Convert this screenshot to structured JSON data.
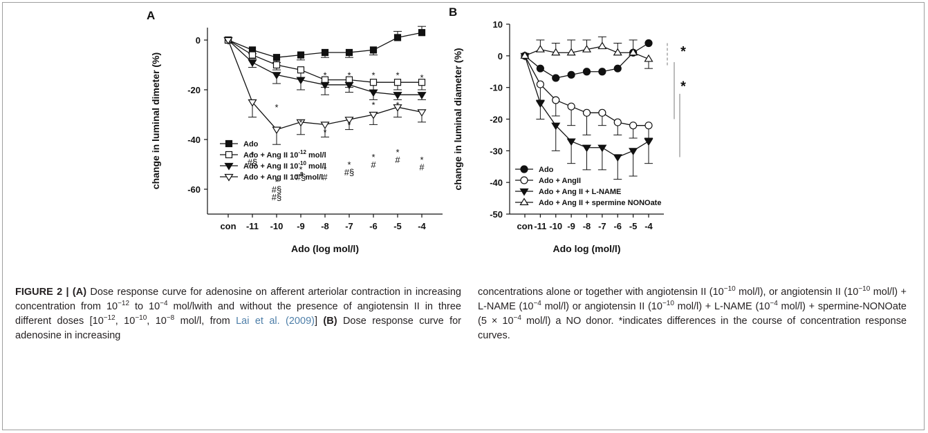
{
  "figure": {
    "caption": {
      "fig_label": "FIGURE 2 | ",
      "a_label": "(A)",
      "a_text_1": " Dose response curve for adenosine on afferent arteriolar contraction in increasing concentration from 10",
      "a_exp_1": "−12",
      "a_text_2": " to 10",
      "a_exp_2": "−4",
      "a_text_3": " mol/lwith and without the presence of angiotensin II in three different doses [10",
      "a_exp_3": "−12",
      "a_text_4": ", 10",
      "a_exp_4": "−10",
      "a_text_5": ", 10",
      "a_exp_5": "−8",
      "a_text_6": " mol/l, from ",
      "a_cite": "Lai et al. (2009)",
      "a_text_7": "] ",
      "b_label": "(B)",
      "b_text_1": " Dose response curve for adenosine in increasing",
      "r_text_1": "concentrations alone or together with angiotensin II (10",
      "r_exp_1": "−10",
      "r_text_2": " mol/l), or angiotensin II (10",
      "r_exp_2": "−10",
      "r_text_3": " mol/l) + L-NAME (10",
      "r_exp_3": "−4",
      "r_text_4": " mol/l) or angiotensin II (10",
      "r_exp_4": "−10",
      "r_text_5": " mol/l) + L-NAME (10",
      "r_exp_5": "−4",
      "r_text_6": " mol/l) + spermine-NONOate (5 × 10",
      "r_exp_6": "−4",
      "r_text_7": " mol/l) a NO donor. *indicates differences in the course of concentration response curves."
    }
  },
  "chart_data": [
    {
      "panel": "A",
      "type": "line",
      "categories": [
        "con",
        "-11",
        "-10",
        "-9",
        "-8",
        "-7",
        "-6",
        "-5",
        "-4"
      ],
      "xlabel": "Ado (log mol/l)",
      "ylabel": "change in luminal dimeter (%)",
      "ylim": [
        -70,
        5
      ],
      "yticks": [
        0,
        -20,
        -40,
        -60
      ],
      "legend_position": "bottom-left",
      "series": [
        {
          "name": "Ado",
          "marker": "square-filled",
          "values": [
            0,
            -4,
            -7,
            -6,
            -5,
            -5,
            -4,
            1,
            3
          ],
          "err": [
            0,
            1.5,
            2,
            2,
            2,
            2,
            2,
            2.5,
            2.5
          ]
        },
        {
          "name": "Ado + Ang II 10^-12 mol/l",
          "marker": "square-open",
          "values": [
            0,
            -6,
            -10,
            -12,
            -16,
            -16,
            -17,
            -17,
            -17
          ],
          "err": [
            0,
            1.5,
            2,
            3,
            3,
            3,
            3,
            3,
            3
          ]
        },
        {
          "name": "Ado + Ang II 10^-10 mol/l",
          "marker": "triangle-down-filled",
          "values": [
            0,
            -9,
            -14,
            -16,
            -18,
            -18,
            -21,
            -22,
            -22
          ],
          "err": [
            0,
            2,
            3.5,
            4,
            4,
            3,
            3,
            2,
            2
          ]
        },
        {
          "name": "Ado + Ang II 10^-8 mol/l",
          "marker": "triangle-down-open",
          "values": [
            0,
            -25,
            -36,
            -33,
            -34,
            -32,
            -30,
            -27,
            -29
          ],
          "err": [
            0,
            6,
            6,
            5,
            5,
            4,
            4,
            4,
            4
          ]
        }
      ],
      "annotations": [
        {
          "x": "-10",
          "y": -27,
          "text": "*"
        },
        {
          "x": "-9",
          "y": -33,
          "text": "*"
        },
        {
          "x": "-8",
          "y": -14,
          "text": "*"
        },
        {
          "x": "-8",
          "y": -37,
          "text": "*"
        },
        {
          "x": "-7",
          "y": -14,
          "text": "*"
        },
        {
          "x": "-7",
          "y": -34,
          "text": "*"
        },
        {
          "x": "-6",
          "y": -14,
          "text": "*"
        },
        {
          "x": "-6",
          "y": -26,
          "text": "*"
        },
        {
          "x": "-5",
          "y": -14,
          "text": "*"
        },
        {
          "x": "-5",
          "y": -26,
          "text": "*"
        },
        {
          "x": "-4",
          "y": -15,
          "text": "*"
        },
        {
          "x": "-11",
          "y": -46,
          "text": "*"
        },
        {
          "x": "-11",
          "y": -49,
          "text": "#§"
        },
        {
          "x": "-10",
          "y": -57,
          "text": "*"
        },
        {
          "x": "-10",
          "y": -60,
          "text": "#§"
        },
        {
          "x": "-10",
          "y": -63,
          "text": "#§"
        },
        {
          "x": "-9",
          "y": -52,
          "text": "*"
        },
        {
          "x": "-9",
          "y": -55,
          "text": "#§"
        },
        {
          "x": "-8",
          "y": -52,
          "text": "*"
        },
        {
          "x": "-8",
          "y": -55,
          "text": "#"
        },
        {
          "x": "-7",
          "y": -50,
          "text": "*"
        },
        {
          "x": "-7",
          "y": -53,
          "text": "#§"
        },
        {
          "x": "-6",
          "y": -47,
          "text": "*"
        },
        {
          "x": "-6",
          "y": -50,
          "text": "#"
        },
        {
          "x": "-5",
          "y": -45,
          "text": "*"
        },
        {
          "x": "-5",
          "y": -48,
          "text": "#"
        },
        {
          "x": "-4",
          "y": -48,
          "text": "*"
        },
        {
          "x": "-4",
          "y": -51,
          "text": "#"
        }
      ]
    },
    {
      "panel": "B",
      "type": "line",
      "categories": [
        "con",
        "-11",
        "-10",
        "-9",
        "-8",
        "-7",
        "-6",
        "-5",
        "-4"
      ],
      "xlabel": "Ado log (mol/l)",
      "ylabel": "change in luminal diameter (%)",
      "ylim": [
        -50,
        10
      ],
      "yticks": [
        10,
        0,
        -10,
        -20,
        -30,
        -40,
        -50
      ],
      "legend_position": "bottom-left",
      "series": [
        {
          "name": "Ado",
          "marker": "circle-filled",
          "values": [
            0,
            -4,
            -7,
            -6,
            -5,
            -5,
            -4,
            1,
            4
          ],
          "err": [
            0,
            0,
            0,
            0,
            0,
            0,
            0,
            0,
            0
          ]
        },
        {
          "name": "Ado + AngII",
          "marker": "circle-open",
          "values": [
            0,
            -9,
            -14,
            -16,
            -18,
            -18,
            -21,
            -22,
            -22
          ],
          "err": [
            0,
            5,
            5,
            6,
            7,
            4,
            4,
            4,
            4
          ]
        },
        {
          "name": "Ado + Ang II + L-NAME",
          "marker": "triangle-down-filled",
          "values": [
            0,
            -15,
            -22,
            -27,
            -29,
            -29,
            -32,
            -30,
            -27
          ],
          "err": [
            0,
            5,
            8,
            7,
            7,
            7,
            7,
            8,
            7
          ]
        },
        {
          "name": "Ado + Ang II + spermine NONOate",
          "marker": "triangle-up-open",
          "values": [
            0,
            2,
            1,
            1,
            2,
            3,
            1,
            1,
            -1
          ],
          "err": [
            0,
            3,
            3,
            4,
            3,
            3,
            3,
            4,
            3
          ]
        }
      ],
      "significance_labels": [
        "*",
        "*"
      ]
    }
  ]
}
